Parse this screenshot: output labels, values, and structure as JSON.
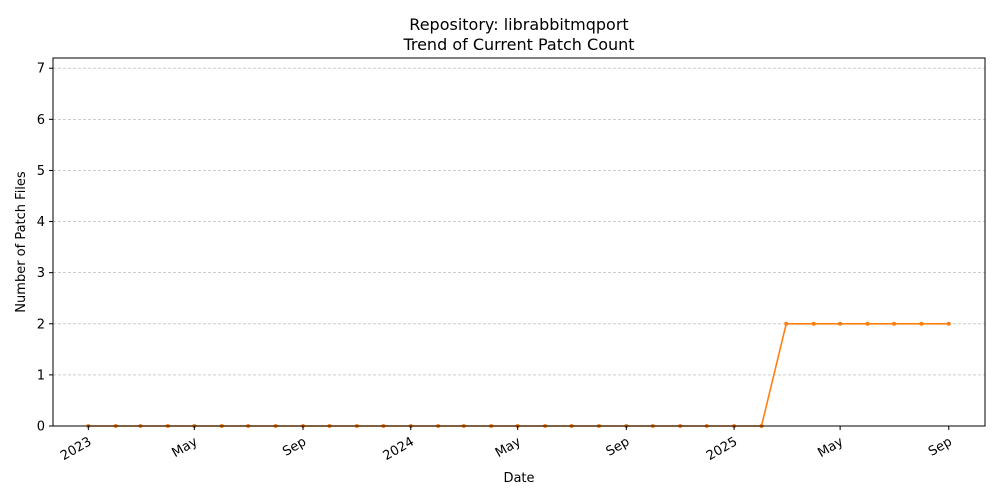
{
  "chart_data": {
    "type": "line",
    "title": "Repository: librabbitmqport",
    "subtitle": "Trend of Current Patch Count",
    "xlabel": "Date",
    "ylabel": "Number of Patch Files",
    "ylim": [
      0,
      7.2
    ],
    "xlim": [
      "2022-11-22",
      "2025-10-12"
    ],
    "yticks": [
      0,
      1,
      2,
      3,
      4,
      5,
      6,
      7
    ],
    "xticks": [
      {
        "date": "2023-01-01",
        "label": "2023"
      },
      {
        "date": "2023-05-01",
        "label": "May"
      },
      {
        "date": "2023-09-01",
        "label": "Sep"
      },
      {
        "date": "2024-01-01",
        "label": "2024"
      },
      {
        "date": "2024-05-01",
        "label": "May"
      },
      {
        "date": "2024-09-01",
        "label": "Sep"
      },
      {
        "date": "2025-01-01",
        "label": "2025"
      },
      {
        "date": "2025-05-01",
        "label": "May"
      },
      {
        "date": "2025-09-01",
        "label": "Sep"
      }
    ],
    "grid": "y",
    "series": [
      {
        "color": "#ff7f0e",
        "x": [
          "2023-01-01",
          "2023-02-01",
          "2023-03-01",
          "2023-04-01",
          "2023-05-01",
          "2023-06-01",
          "2023-07-01",
          "2023-08-01",
          "2023-09-01",
          "2023-10-01",
          "2023-11-01",
          "2023-12-01",
          "2024-01-01",
          "2024-02-01",
          "2024-03-01",
          "2024-04-01",
          "2024-05-01",
          "2024-06-01",
          "2024-07-01",
          "2024-08-01",
          "2024-09-01",
          "2024-10-01",
          "2024-11-01",
          "2024-12-01",
          "2025-01-01",
          "2025-02-01",
          "2025-03-01",
          "2025-04-01",
          "2025-05-01",
          "2025-06-01",
          "2025-07-01",
          "2025-08-01",
          "2025-09-01"
        ],
        "values": [
          0,
          0,
          0,
          0,
          0,
          0,
          0,
          0,
          0,
          0,
          0,
          0,
          0,
          0,
          0,
          0,
          0,
          0,
          0,
          0,
          0,
          0,
          0,
          0,
          0,
          0,
          2,
          2,
          2,
          2,
          2,
          2,
          2
        ]
      }
    ]
  }
}
